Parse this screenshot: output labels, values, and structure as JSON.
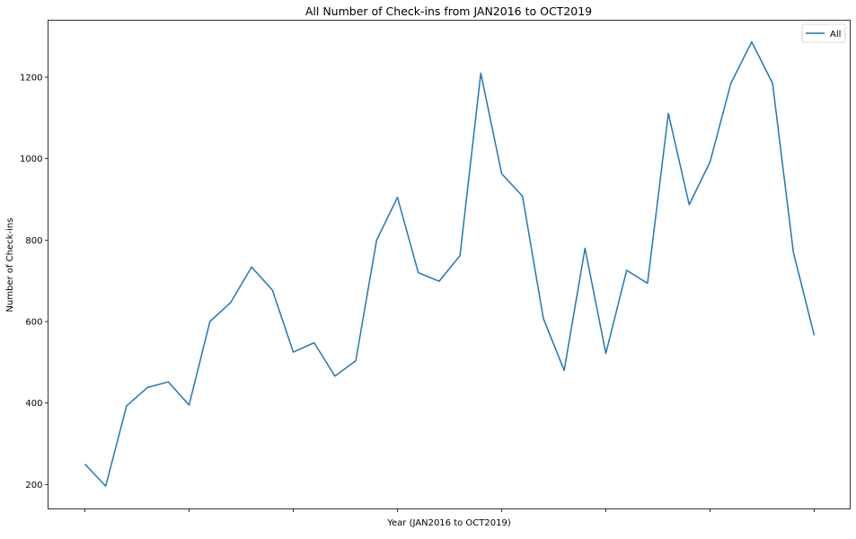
{
  "chart_data": {
    "type": "line",
    "title": "All Number of Check-ins from JAN2016 to OCT2019",
    "xlabel": "Year (JAN2016 to OCT2019)",
    "ylabel": "Number of Check-ins",
    "ylim": [
      140,
      1340
    ],
    "yticks": [
      200,
      400,
      600,
      800,
      1000,
      1200
    ],
    "grid": false,
    "legend_position": "top-right",
    "series": [
      {
        "name": "All",
        "color": "#1f77b4",
        "values": [
          250,
          196,
          393,
          438,
          452,
          395,
          600,
          647,
          734,
          677,
          525,
          548,
          466,
          504,
          800,
          905,
          720,
          699,
          762,
          1210,
          963,
          908,
          608,
          480,
          780,
          522,
          726,
          694,
          1111,
          887,
          992,
          1185,
          1287,
          1185,
          770,
          566
        ]
      }
    ]
  }
}
